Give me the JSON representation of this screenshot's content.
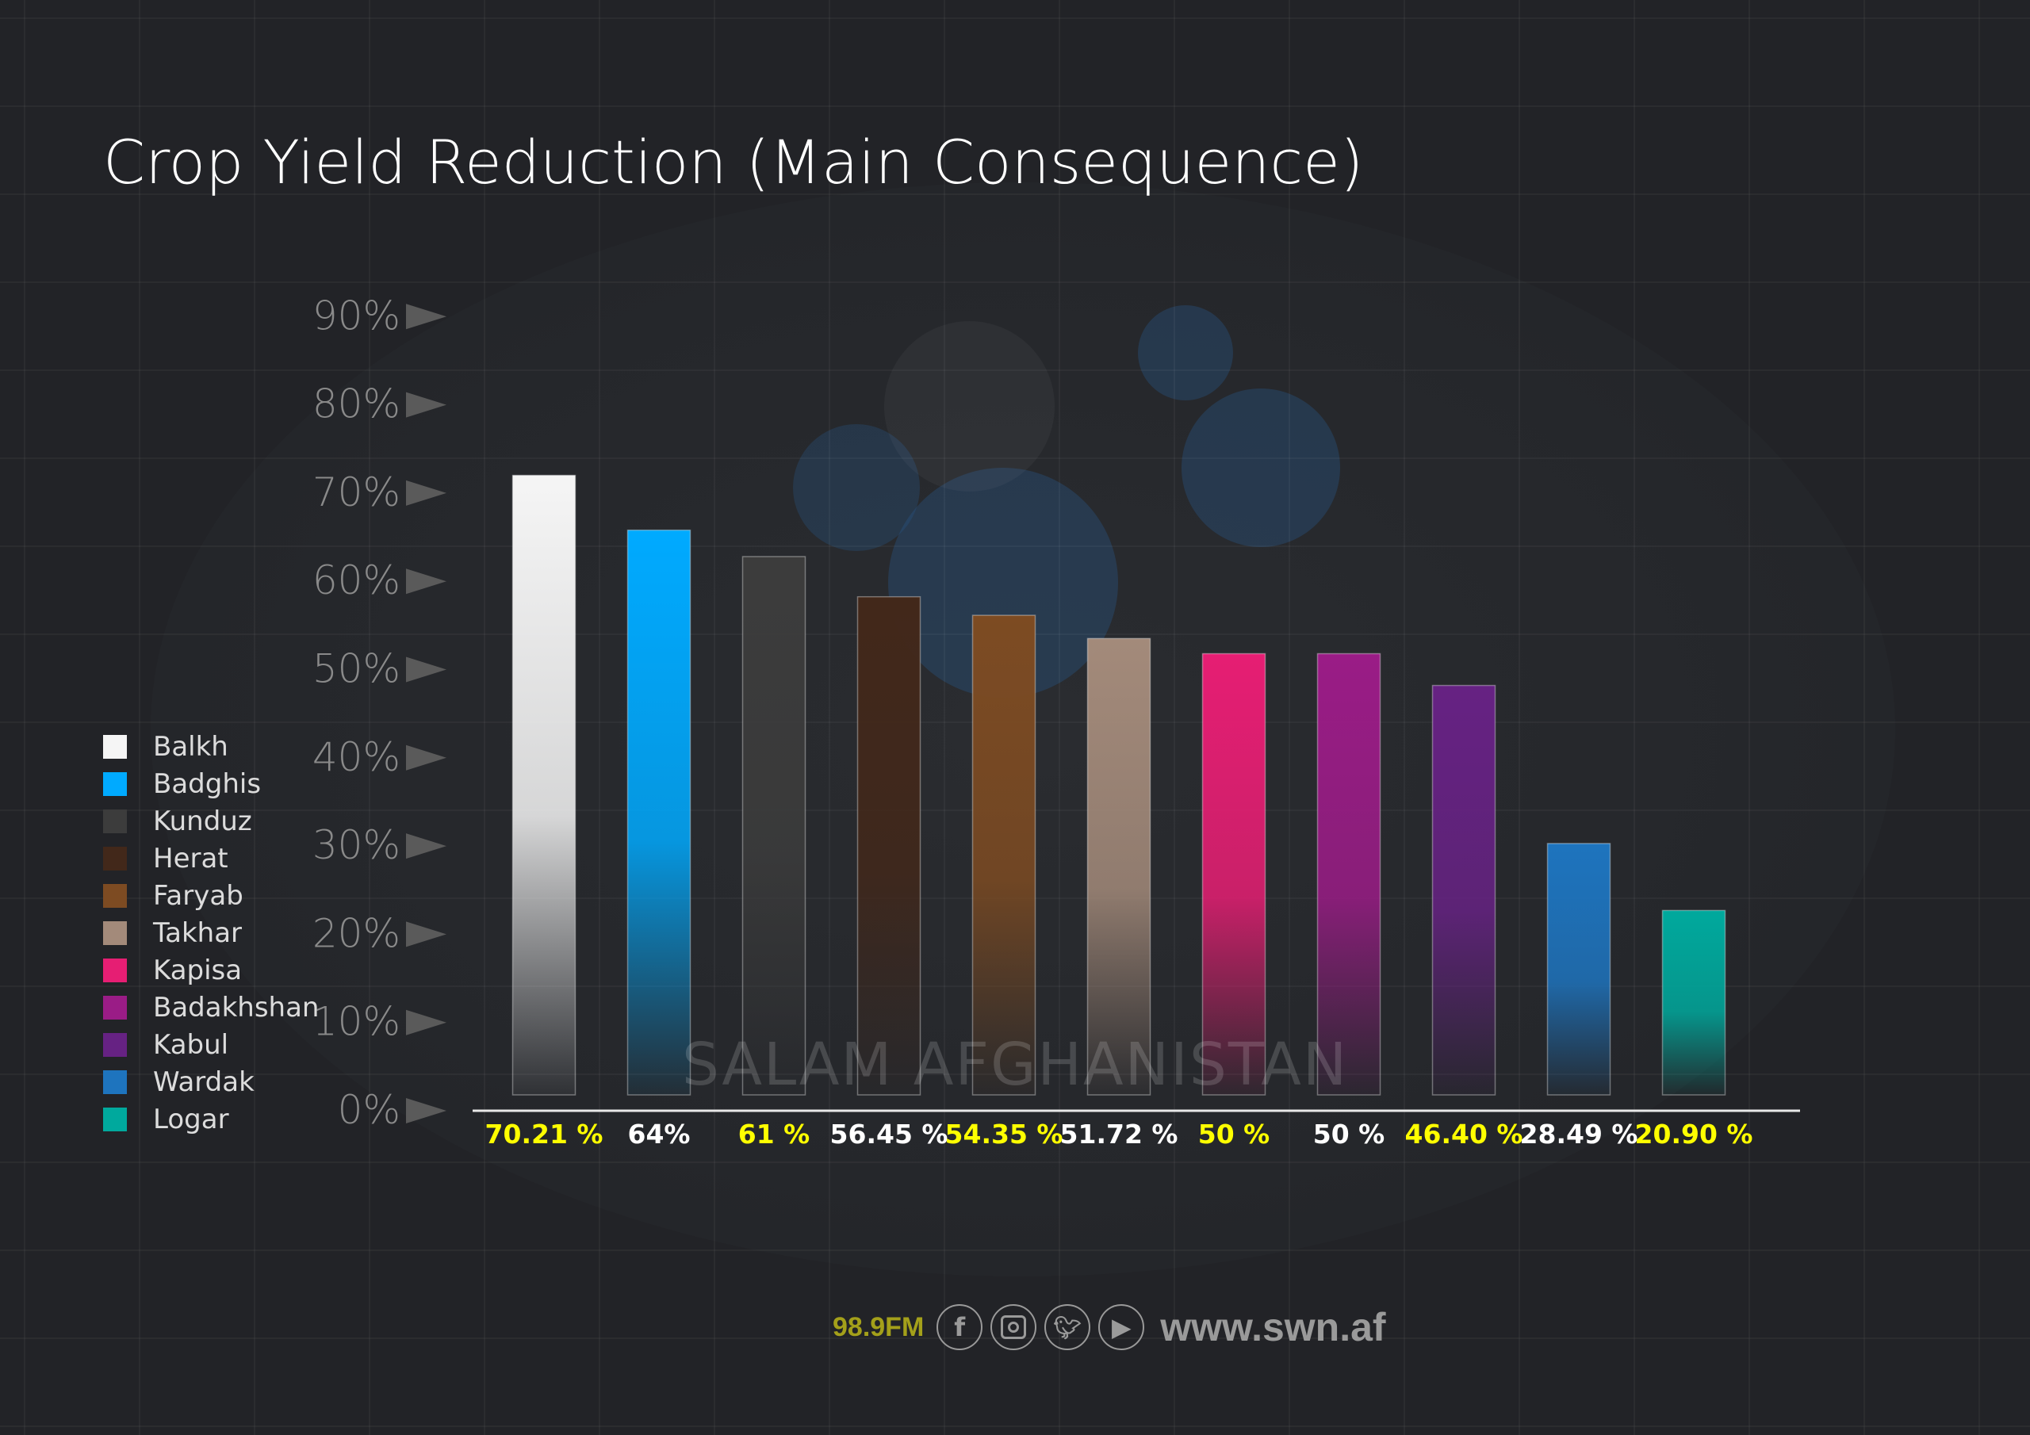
{
  "chart_data": {
    "type": "bar",
    "title": "Crop Yield Reduction (Main Consequence)",
    "categories": [
      "Balkh",
      "Badghis",
      "Kunduz",
      "Herat",
      "Faryab",
      "Takhar",
      "Kapisa",
      "Badakhshan",
      "Kabul",
      "Wardak",
      "Logar"
    ],
    "values": [
      70.21,
      64,
      61,
      56.45,
      54.35,
      51.72,
      50,
      50,
      46.4,
      28.49,
      20.9
    ],
    "value_labels": [
      "70.21 %",
      "64%",
      "61 %",
      "56.45 %",
      "54.35 %",
      "51.72 %",
      "50 %",
      "50 %",
      "46.40 %",
      "28.49 %",
      "20.90 %"
    ],
    "label_colors": [
      "#ffff00",
      "#ffffff",
      "#ffff00",
      "#ffffff",
      "#ffff00",
      "#ffffff",
      "#ffff00",
      "#ffffff",
      "#ffff00",
      "#ffffff",
      "#ffff00"
    ],
    "colors": [
      "#f5f5f5",
      "#00aaff",
      "#3c3c3c",
      "#42281a",
      "#7d4b22",
      "#a38a7a",
      "#e61e73",
      "#9a1c86",
      "#662283",
      "#1e74be",
      "#00a99d"
    ],
    "yticks": [
      "0%",
      "10%",
      "20%",
      "30%",
      "40%",
      "50%",
      "60%",
      "70%",
      "80%",
      "90%"
    ],
    "ylim": [
      0,
      90
    ],
    "xlabel": "",
    "ylabel": "",
    "legend": "left",
    "grid": true
  },
  "watermark": "SALAM AFGHANISTAN",
  "footer": {
    "fm": "98.9FM",
    "url": "www.swn.af",
    "icons": [
      "facebook-icon",
      "instagram-icon",
      "twitter-icon",
      "play-icon"
    ]
  }
}
